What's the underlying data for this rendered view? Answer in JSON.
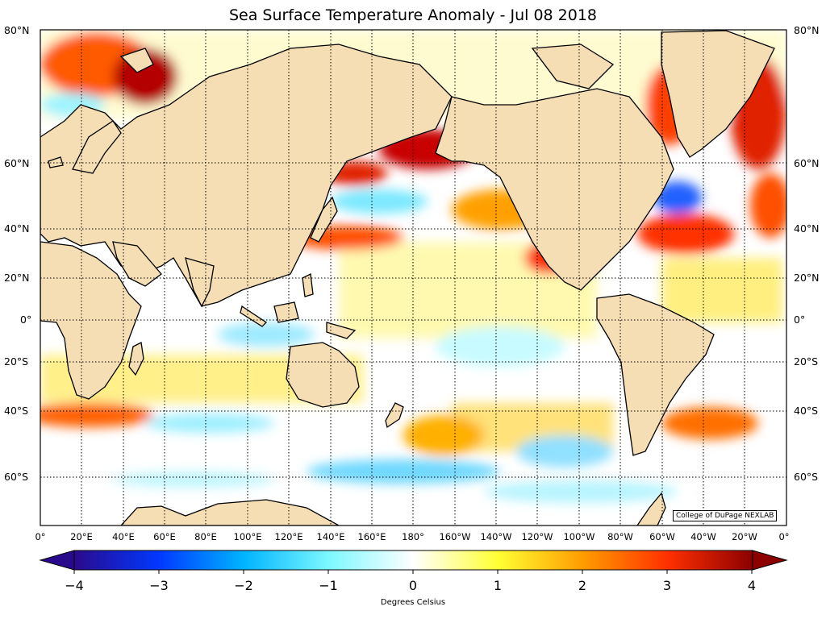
{
  "title": "Sea Surface Temperature Anomaly - Jul 08 2018",
  "lat_labels": [
    "80°N",
    "60°N",
    "40°N",
    "20°N",
    "0°",
    "20°S",
    "40°S",
    "60°S"
  ],
  "lon_labels": [
    "0°",
    "20°E",
    "40°E",
    "60°E",
    "80°E",
    "100°E",
    "120°E",
    "140°E",
    "160°E",
    "180°",
    "160°W",
    "140°W",
    "120°W",
    "100°W",
    "80°W",
    "60°W",
    "40°W",
    "20°W",
    "0°"
  ],
  "colorbar": {
    "ticks": [
      "−4",
      "−3",
      "−2",
      "−1",
      "0",
      "1",
      "2",
      "3",
      "4"
    ],
    "min": -4,
    "max": 4,
    "label": "Degrees Celsius",
    "colors": [
      "#2a0a8c",
      "#0038ff",
      "#00b4ff",
      "#7cf8ff",
      "#ffffff",
      "#ffff33",
      "#ff9c00",
      "#ff3000",
      "#8c0000"
    ]
  },
  "credit": "College of DuPage NEXLAB",
  "colors": {
    "land": "#f5deb3",
    "coast": "#000000",
    "border": "#888888"
  }
}
